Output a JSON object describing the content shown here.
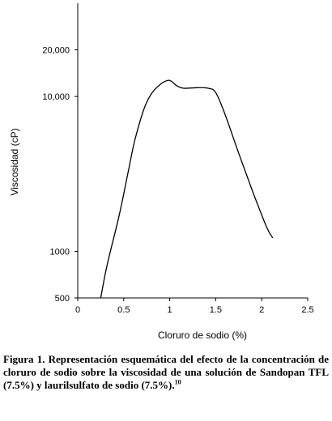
{
  "chart_data": {
    "type": "line",
    "ylabel": "Viscosidad (cP)",
    "xlabel": "Cloruro de sodio (%)",
    "x_ticks": [
      "0",
      "0.5",
      "1",
      "1.5",
      "2",
      "2.5"
    ],
    "x_tick_values": [
      0,
      0.5,
      1,
      1.5,
      2,
      2.5
    ],
    "y_ticks": [
      "500",
      "1000",
      "10,000",
      "20,000"
    ],
    "y_tick_values": [
      500,
      1000,
      10000,
      20000
    ],
    "xlim": [
      0,
      2.5
    ],
    "ylim": [
      500,
      40000
    ],
    "y_scale": "log",
    "grid": false,
    "series": [
      {
        "x": [
          0.25,
          0.32,
          0.45,
          0.55,
          0.62,
          0.72,
          0.8,
          0.9,
          0.98,
          1.02,
          1.08,
          1.15,
          1.3,
          1.42,
          1.5,
          1.6,
          1.75,
          1.9,
          2.05,
          2.12
        ],
        "y": [
          500,
          820,
          1700,
          3300,
          5200,
          8300,
          10400,
          12000,
          12700,
          12500,
          11700,
          11300,
          11400,
          11300,
          10600,
          7700,
          4300,
          2450,
          1450,
          1220
        ]
      }
    ]
  },
  "caption": {
    "prefix": "Figura 1. Representación esquemática del efecto de la concentración de cloruro de sodio sobre la viscosidad de una solución de Sandopan TFL (7.5%) y laurilsulfato de sodio (7.5%).",
    "ref": "10"
  }
}
